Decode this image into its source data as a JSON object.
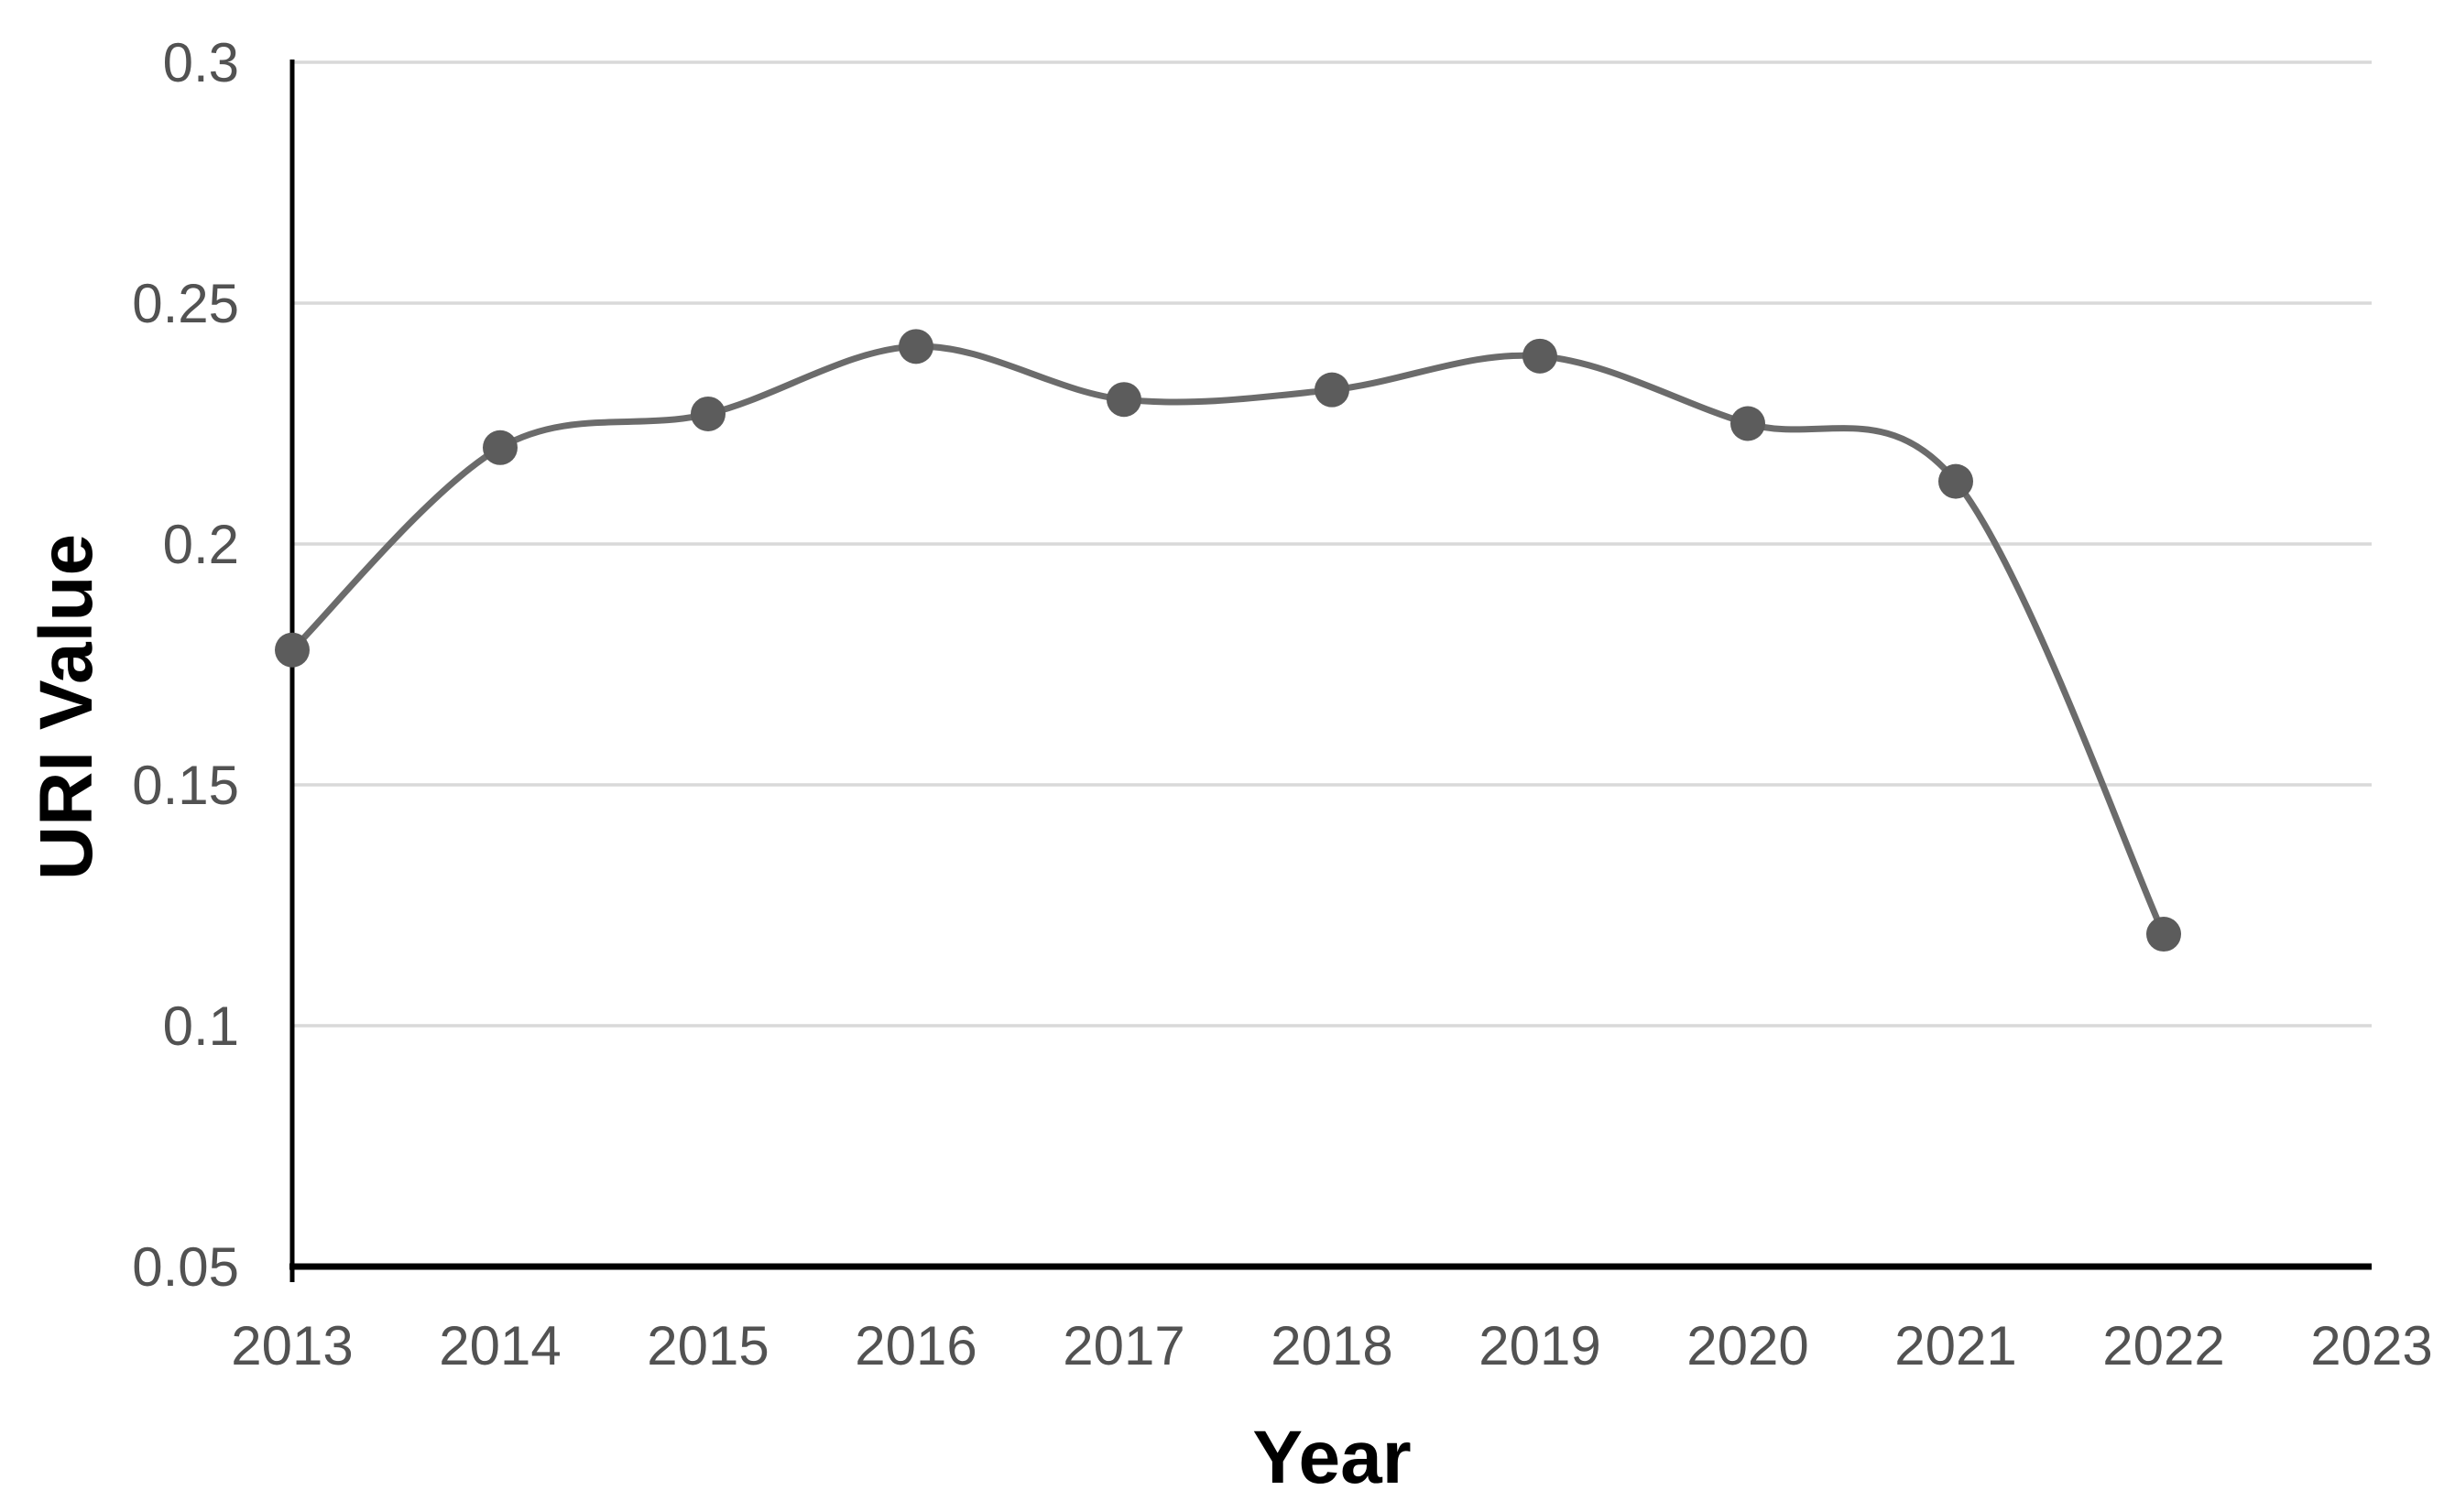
{
  "chart_data": {
    "type": "line",
    "title": "",
    "xlabel": "Year",
    "ylabel": "URI Value",
    "categories": [
      "2013",
      "2014",
      "2015",
      "2016",
      "2017",
      "2018",
      "2019",
      "2020",
      "2021",
      "2022"
    ],
    "values": [
      0.178,
      0.22,
      0.227,
      0.241,
      0.23,
      0.232,
      0.239,
      0.225,
      0.213,
      0.119
    ],
    "x_axis_tick_labels": [
      "2013",
      "2014",
      "2015",
      "2016",
      "2017",
      "2018",
      "2019",
      "2020",
      "2021",
      "2022",
      "2023"
    ],
    "y_tick_labels": [
      "0.3",
      "0.25",
      "0.2",
      "0.15",
      "0.1",
      "0.05"
    ],
    "y_ticks": [
      0.3,
      0.25,
      0.2,
      0.15,
      0.1,
      0.05
    ],
    "ylim": [
      0.05,
      0.3
    ],
    "grid": "horizontal",
    "legend": "none",
    "smoothed_line": true,
    "marker": "circle",
    "colors": {
      "line": "#6b6b6b",
      "marker": "#5c5c5c",
      "gridline": "#d9d9d9",
      "axis": "#000000",
      "tick_label": "#525252",
      "axis_title": "#000000",
      "background": "#ffffff"
    }
  }
}
